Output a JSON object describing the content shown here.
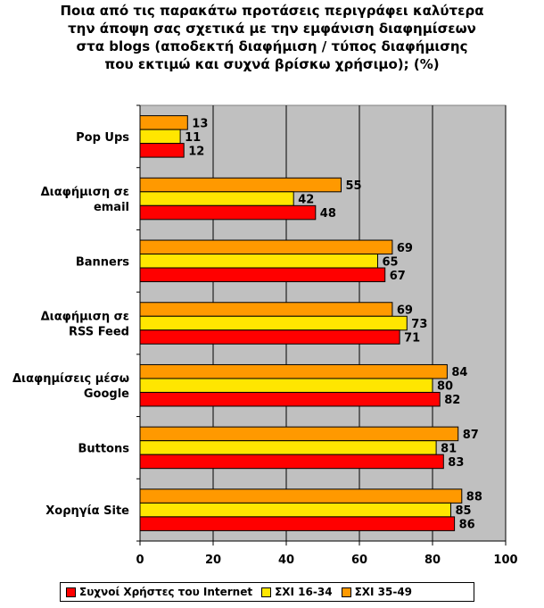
{
  "chart_data": {
    "type": "bar",
    "orientation": "horizontal",
    "title": "Ποια από τις παρακάτω προτάσεις περιγράφει καλύτερα\nτην άποψη σας σχετικά με την εμφάνιση διαφημίσεων\nστα blogs (αποδεκτή διαφήμιση / τύπος διαφήμισης\nπου εκτιμώ και συχνά βρίσκω χρήσιμο); (%)",
    "categories": [
      [
        "Pop Ups"
      ],
      [
        "Διαφήμιση σε",
        "email"
      ],
      [
        "Banners"
      ],
      [
        "Διαφήμιση σε",
        "RSS Feed"
      ],
      [
        "Διαφημίσεις μέσω",
        "Google"
      ],
      [
        "Buttons"
      ],
      [
        "Χορηγία Site"
      ]
    ],
    "series": [
      {
        "name": "ΣΧΙ 35-49",
        "color": "#FF9900",
        "values": [
          13,
          55,
          69,
          69,
          84,
          87,
          88
        ]
      },
      {
        "name": "ΣΧΙ 16-34",
        "color": "#FFE600",
        "values": [
          11,
          42,
          65,
          73,
          80,
          81,
          85
        ]
      },
      {
        "name": "Συχνοί Χρήστες του Internet",
        "color": "#FF0000",
        "values": [
          12,
          48,
          67,
          71,
          82,
          83,
          86
        ]
      }
    ],
    "xlim": [
      0,
      100
    ],
    "xticks": [
      0,
      20,
      40,
      60,
      80,
      100
    ],
    "grid": true,
    "plot_background": "#C0C0C0",
    "legend_position": "bottom",
    "legend_order": [
      "Συχνοί Χρήστες του Internet",
      "ΣΧΙ 16-34",
      "ΣΧΙ 35-49"
    ]
  }
}
